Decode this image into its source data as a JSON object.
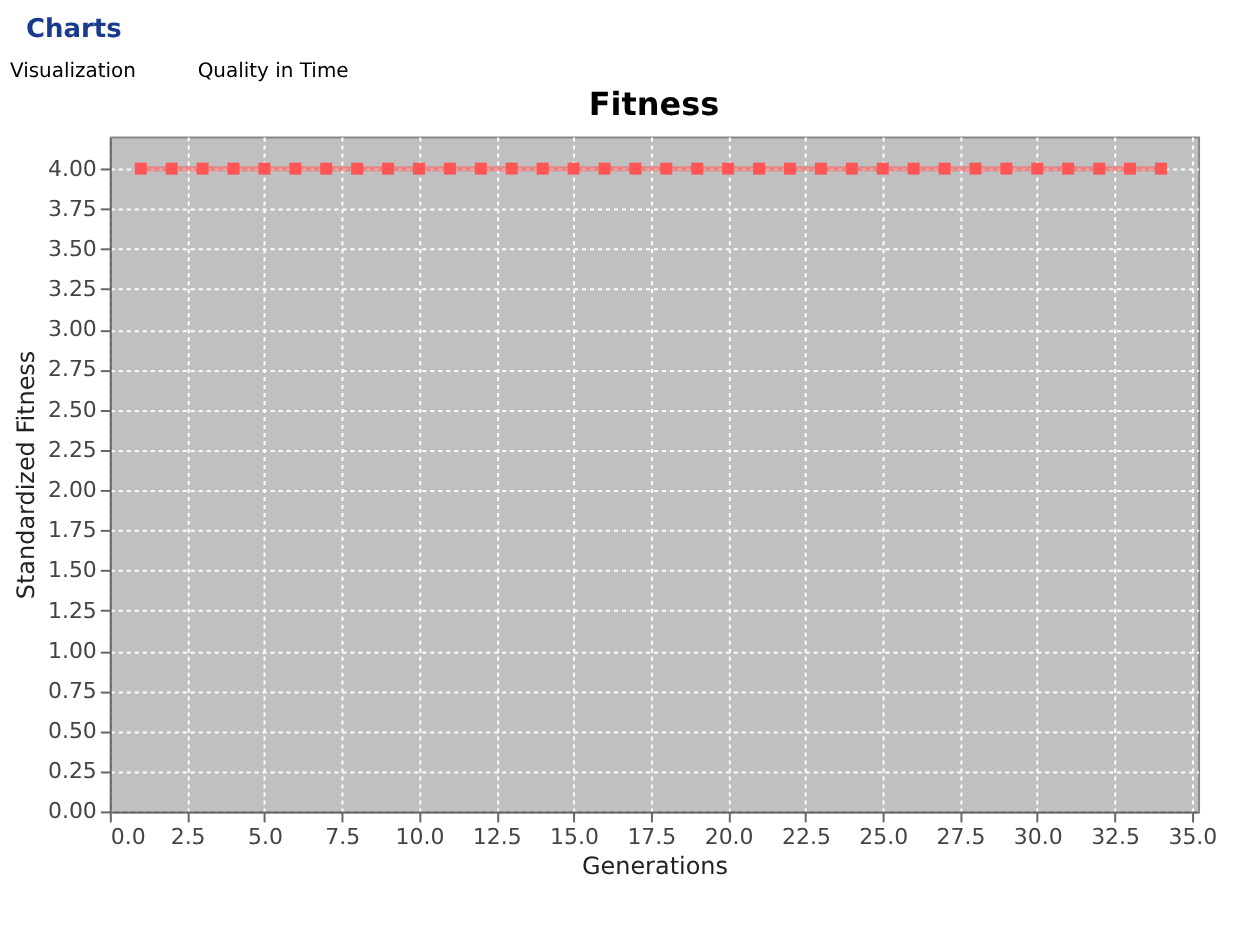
{
  "chart_data": {
    "type": "line",
    "title": "Fitness",
    "xlabel": "Generations",
    "ylabel": "Standardized Fitness",
    "annotations": [
      "Charts",
      "Visualization",
      "Quality in Time"
    ],
    "x": [
      1,
      2,
      3,
      4,
      5,
      6,
      7,
      8,
      9,
      10,
      11,
      12,
      13,
      14,
      15,
      16,
      17,
      18,
      19,
      20,
      21,
      22,
      23,
      24,
      25,
      26,
      27,
      28,
      29,
      30,
      31,
      32,
      33,
      34
    ],
    "series": [
      {
        "color": "#ff5555",
        "values": [
          4,
          4,
          4,
          4,
          4,
          4,
          4,
          4,
          4,
          4,
          4,
          4,
          4,
          4,
          4,
          4,
          4,
          4,
          4,
          4,
          4,
          4,
          4,
          4,
          4,
          4,
          4,
          4,
          4,
          4,
          4,
          4,
          4,
          4
        ]
      }
    ],
    "xlim": [
      0,
      35.2
    ],
    "ylim": [
      0,
      4.2
    ],
    "xticks": [
      {
        "value": 0,
        "label": "0.0"
      },
      2.5,
      {
        "value": 5,
        "label": "5.0"
      },
      7.5,
      {
        "value": 10,
        "label": "10.0"
      },
      12.5,
      {
        "value": 15,
        "label": "15.0"
      },
      17.5,
      {
        "value": 20,
        "label": "20.0"
      },
      22.5,
      {
        "value": 25,
        "label": "25.0"
      },
      27.5,
      {
        "value": 30,
        "label": "30.0"
      },
      32.5,
      {
        "value": 35,
        "label": "35.0"
      }
    ],
    "yticks": [
      {
        "value": 0,
        "label": "0.00"
      },
      0.25,
      {
        "value": 0.5,
        "label": "0.50"
      },
      0.75,
      {
        "value": 1,
        "label": "1.00"
      },
      1.25,
      {
        "value": 1.5,
        "label": "1.50"
      },
      1.75,
      {
        "value": 2,
        "label": "2.00"
      },
      2.25,
      {
        "value": 2.5,
        "label": "2.50"
      },
      2.75,
      {
        "value": 3,
        "label": "3.00"
      },
      3.25,
      {
        "value": 3.5,
        "label": "3.50"
      },
      3.75,
      {
        "value": 4,
        "label": "4.00"
      }
    ],
    "grid": true,
    "marker": "square",
    "line_style": "solid"
  }
}
